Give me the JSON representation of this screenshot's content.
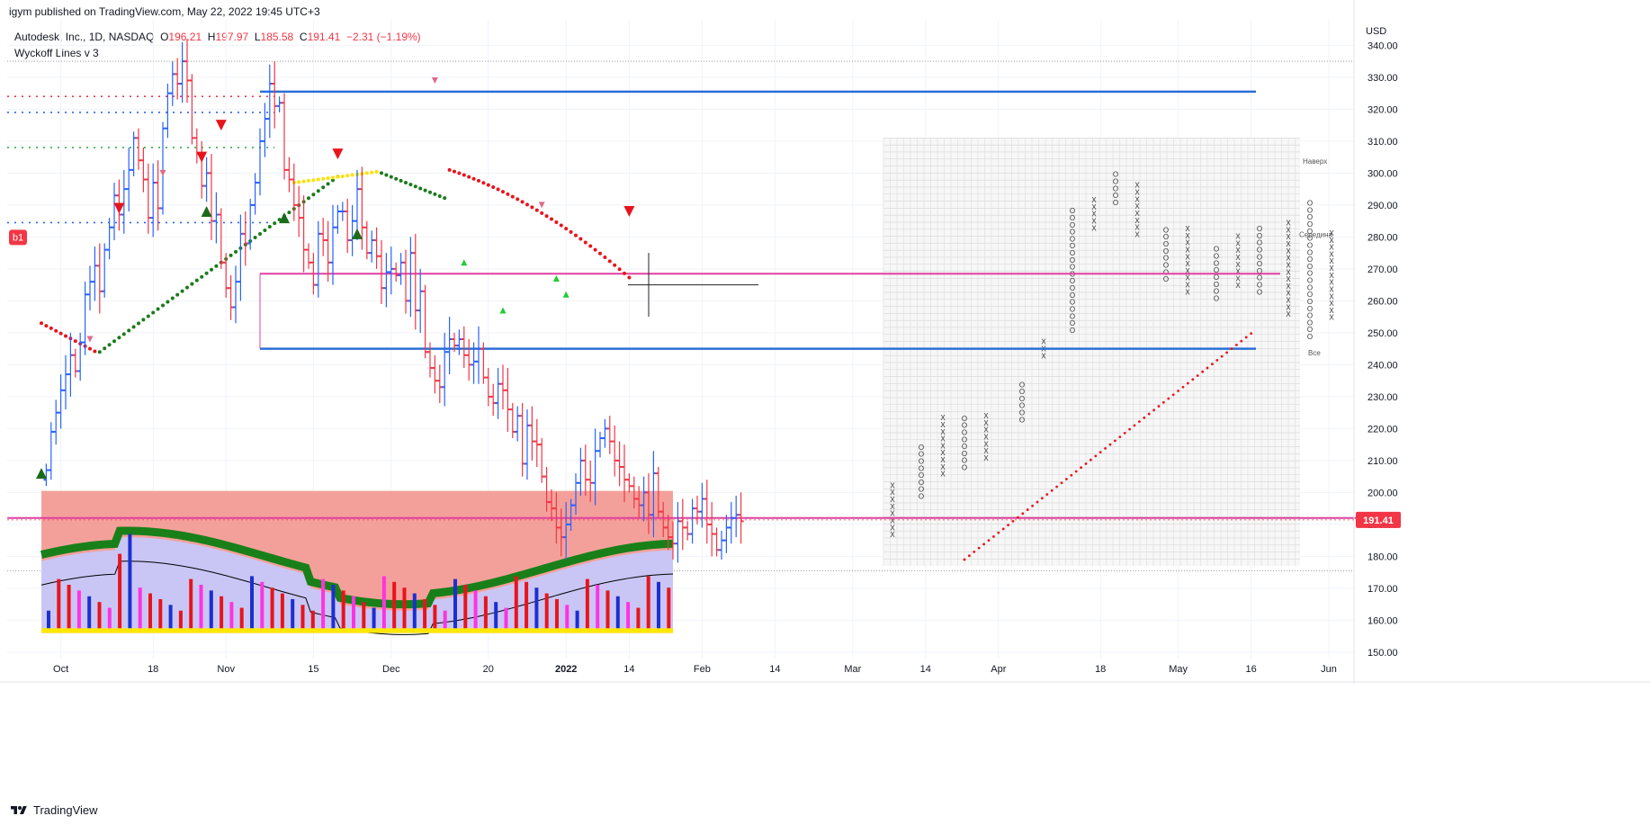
{
  "header": {
    "published": "igym published on TradingView.com, May 22, 2022 19:45 UTC+3",
    "symbol": "Autodesk, Inc., 1D, NASDAQ",
    "o_label": "O",
    "o_value": "196.21",
    "h_label": "H",
    "h_value": "197.97",
    "l_label": "L",
    "l_value": "185.58",
    "c_label": "C",
    "c_value": "191.41",
    "change": "−2.31 (−1.19%)",
    "indicator": "Wyckoff Lines v 3"
  },
  "footer": {
    "brand": "TradingView"
  },
  "colors": {
    "up": "#2962ff",
    "down": "#f23645",
    "blue_line": "#2b6fd6",
    "magenta_line": "#e040a0",
    "price_badge": "#f23645",
    "sar_red": "#e8141c",
    "sar_green": "#1a7a1a",
    "sar_yellow": "#ffe000"
  },
  "chart_data": {
    "type": "ohlc",
    "title": "Autodesk, Inc., 1D, NASDAQ",
    "currency": "USD",
    "x_ticks": [
      "Oct",
      "18",
      "Nov",
      "15",
      "Dec",
      "20",
      "2022",
      "14",
      "Feb",
      "14",
      "Mar",
      "14",
      "Apr",
      "18",
      "May",
      "16",
      "Jun"
    ],
    "y_ticks": [
      "340.00",
      "330.00",
      "320.00",
      "310.00",
      "300.00",
      "290.00",
      "280.00",
      "270.00",
      "260.00",
      "250.00",
      "240.00",
      "230.00",
      "220.00",
      "210.00",
      "200.00",
      "190.00",
      "180.00",
      "170.00",
      "160.00",
      "150.00"
    ],
    "ylim": [
      148,
      348
    ],
    "last_price": "191.41",
    "badge": "b1",
    "horizontal_levels": [
      {
        "value": 325.5,
        "color": "blue",
        "from": "Nov 22",
        "to": "May 20"
      },
      {
        "value": 268.5,
        "color": "magenta",
        "from": "Nov 22",
        "to": "May 27"
      },
      {
        "value": 245.0,
        "color": "blue",
        "from": "Nov 22",
        "to": "May 20"
      },
      {
        "value": 192.0,
        "color": "magenta",
        "from": "Sep 20",
        "to": "Jun 13"
      }
    ],
    "dotted_levels": [
      {
        "value": 324.0,
        "color": "red"
      },
      {
        "value": 319.0,
        "color": "blue"
      },
      {
        "value": 308.0,
        "color": "green"
      },
      {
        "value": 284.5,
        "color": "blue"
      }
    ],
    "pnf_labels": [
      "Наверх",
      "Середина",
      "Все"
    ],
    "closes": [
      207,
      219,
      225,
      232,
      237,
      243,
      238,
      247,
      262,
      266,
      271,
      263,
      276,
      283,
      293,
      287,
      295,
      301,
      311,
      304,
      298,
      286,
      297,
      289,
      314,
      325,
      331,
      328,
      335,
      329,
      311,
      306,
      296,
      300,
      285,
      287,
      272,
      264,
      258,
      266,
      281,
      278,
      290,
      297,
      310,
      317,
      328,
      321,
      322,
      301,
      298,
      290,
      286,
      276,
      272,
      265,
      281,
      279,
      272,
      283,
      288,
      288,
      279,
      285,
      295,
      283,
      275,
      279,
      274,
      264,
      269,
      270,
      268,
      272,
      260,
      275,
      257,
      263,
      244,
      239,
      235,
      233,
      244,
      248,
      246,
      248,
      243,
      240,
      241,
      245,
      236,
      230,
      228,
      234,
      232,
      226,
      219,
      224,
      209,
      221,
      216,
      215,
      205,
      197,
      195,
      189,
      186,
      190,
      196,
      203,
      210,
      204,
      203,
      213,
      217,
      220,
      216,
      210,
      208,
      204,
      202,
      198,
      196,
      200,
      193,
      206,
      194,
      189,
      186,
      184,
      191,
      189,
      187,
      195,
      194,
      198,
      190,
      187,
      182,
      185,
      189,
      192,
      193,
      191
    ]
  }
}
